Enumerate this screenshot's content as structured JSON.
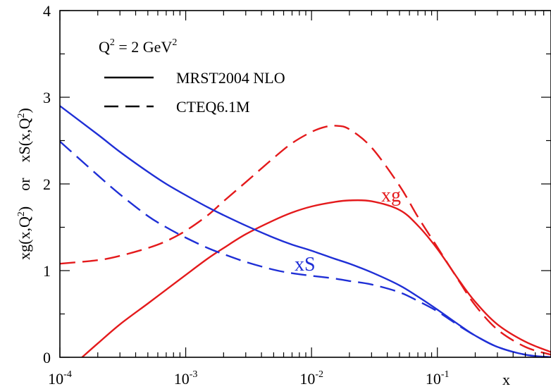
{
  "chart_data": {
    "type": "line",
    "x_scale": "log",
    "xlim": [
      0.0001,
      0.8
    ],
    "ylim": [
      0,
      4
    ],
    "xlabel": "x",
    "ylabel_parts": {
      "left": "xg(x,Q",
      "left_sup": "2",
      "left_close": ")",
      "mid": "or",
      "right": "xS(x,Q",
      "right_sup": "2",
      "right_close": ")"
    },
    "x_ticks": [
      {
        "value": 0.0001,
        "base": "10",
        "exp": "-4"
      },
      {
        "value": 0.001,
        "base": "10",
        "exp": "-3"
      },
      {
        "value": 0.01,
        "base": "10",
        "exp": "-2"
      },
      {
        "value": 0.1,
        "base": "10",
        "exp": "-1"
      }
    ],
    "y_ticks": [
      "0",
      "1",
      "2",
      "3",
      "4"
    ],
    "legend": {
      "title_main": "Q",
      "title_sup": "2",
      "title_rest": " = 2 GeV",
      "title_sup2": "2",
      "entries": [
        {
          "label": "MRST2004 NLO",
          "style": "solid"
        },
        {
          "label": "CTEQ6.1M",
          "style": "dashed"
        }
      ]
    },
    "annotations": [
      {
        "text": "xg",
        "color": "#e41a1c",
        "x": 0.06,
        "y": 1.8
      },
      {
        "text": "xS",
        "color": "#1f2fd6",
        "x": 0.008,
        "y": 1.05
      }
    ],
    "series": [
      {
        "group": "xg",
        "style": "solid",
        "color": "#e41a1c",
        "x": [
          0.00015,
          0.0002,
          0.0003,
          0.0005,
          0.0007,
          0.001,
          0.0015,
          0.002,
          0.003,
          0.005,
          0.007,
          0.01,
          0.015,
          0.02,
          0.03,
          0.05,
          0.07,
          0.1,
          0.15,
          0.2,
          0.3,
          0.5,
          0.8
        ],
        "y": [
          0.0,
          0.16,
          0.38,
          0.62,
          0.78,
          0.95,
          1.14,
          1.26,
          1.42,
          1.58,
          1.67,
          1.74,
          1.79,
          1.81,
          1.8,
          1.7,
          1.52,
          1.25,
          0.88,
          0.64,
          0.38,
          0.18,
          0.06
        ]
      },
      {
        "group": "xg",
        "style": "dashed",
        "color": "#e41a1c",
        "x": [
          0.0001,
          0.0002,
          0.0003,
          0.0005,
          0.0007,
          0.001,
          0.0015,
          0.002,
          0.003,
          0.005,
          0.007,
          0.01,
          0.013,
          0.016,
          0.02,
          0.03,
          0.05,
          0.07,
          0.1,
          0.15,
          0.2,
          0.3,
          0.5,
          0.8
        ],
        "y": [
          1.08,
          1.12,
          1.17,
          1.26,
          1.34,
          1.46,
          1.64,
          1.8,
          2.02,
          2.3,
          2.47,
          2.6,
          2.66,
          2.67,
          2.63,
          2.42,
          1.98,
          1.62,
          1.27,
          0.87,
          0.6,
          0.32,
          0.12,
          0.03
        ]
      },
      {
        "group": "xS",
        "style": "solid",
        "color": "#1f2fd6",
        "x": [
          0.0001,
          0.0002,
          0.0003,
          0.0005,
          0.0007,
          0.001,
          0.0015,
          0.002,
          0.003,
          0.005,
          0.007,
          0.01,
          0.015,
          0.02,
          0.03,
          0.05,
          0.07,
          0.1,
          0.15,
          0.2,
          0.3,
          0.5,
          0.8
        ],
        "y": [
          2.9,
          2.57,
          2.37,
          2.14,
          2.0,
          1.87,
          1.73,
          1.64,
          1.52,
          1.38,
          1.3,
          1.23,
          1.14,
          1.08,
          0.98,
          0.83,
          0.7,
          0.55,
          0.37,
          0.25,
          0.12,
          0.03,
          0.0
        ]
      },
      {
        "group": "xS",
        "style": "dashed",
        "color": "#1f2fd6",
        "x": [
          0.0001,
          0.0002,
          0.0003,
          0.0005,
          0.0007,
          0.001,
          0.0015,
          0.002,
          0.003,
          0.005,
          0.007,
          0.01,
          0.015,
          0.02,
          0.03,
          0.05,
          0.07,
          0.1,
          0.15,
          0.2,
          0.3,
          0.5,
          0.8
        ],
        "y": [
          2.49,
          2.1,
          1.88,
          1.63,
          1.5,
          1.38,
          1.26,
          1.19,
          1.1,
          1.01,
          0.97,
          0.94,
          0.91,
          0.88,
          0.84,
          0.75,
          0.65,
          0.53,
          0.36,
          0.25,
          0.12,
          0.03,
          0.0
        ]
      }
    ]
  }
}
